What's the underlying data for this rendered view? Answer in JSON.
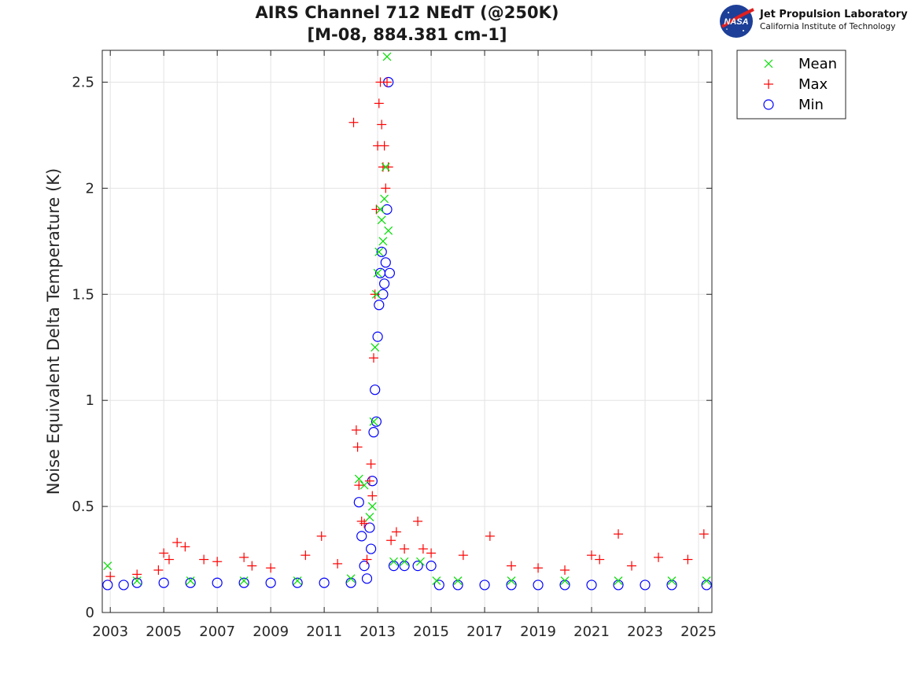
{
  "logo": {
    "name": "Jet Propulsion Laboratory",
    "subtitle": "California Institute of Technology",
    "badge": "NASA"
  },
  "chart_data": {
    "type": "scatter",
    "title_line1": "AIRS Channel 712 NEdT (@250K)",
    "title_line2": "[M-08, 884.381 cm-1]",
    "xlabel": "",
    "ylabel": "Noise Equivalent Delta Temperature (K)",
    "xlim": [
      2002.7,
      2025.5
    ],
    "ylim": [
      0,
      2.65
    ],
    "xticks": [
      2003,
      2005,
      2007,
      2009,
      2011,
      2013,
      2015,
      2017,
      2019,
      2021,
      2023,
      2025
    ],
    "xtick_labels": [
      "2003",
      "2005",
      "2007",
      "2009",
      "2011",
      "2013",
      "2015",
      "2017",
      "2019",
      "2021",
      "2023",
      "2025"
    ],
    "yticks": [
      0,
      0.5,
      1,
      1.5,
      2,
      2.5
    ],
    "ytick_labels": [
      "0",
      "0.5",
      "1",
      "1.5",
      "2",
      "2.5"
    ],
    "grid": true,
    "legend_position": "outside-top-right",
    "series": [
      {
        "name": "Mean",
        "marker": "x",
        "color": "#00dd00",
        "x": [
          2002.9,
          2004.0,
          2006.0,
          2008.0,
          2010.0,
          2012.0,
          2012.3,
          2012.5,
          2012.7,
          2012.8,
          2012.85,
          2012.9,
          2012.95,
          2013.0,
          2013.05,
          2013.1,
          2013.15,
          2013.2,
          2013.25,
          2013.3,
          2013.35,
          2013.4,
          2013.6,
          2014.0,
          2014.6,
          2015.2,
          2016.0,
          2018.0,
          2020.0,
          2022.0,
          2024.0,
          2025.3
        ],
        "y": [
          0.22,
          0.15,
          0.15,
          0.15,
          0.15,
          0.16,
          0.63,
          0.6,
          0.45,
          0.5,
          0.9,
          1.25,
          1.5,
          1.6,
          1.7,
          1.9,
          1.85,
          1.75,
          1.95,
          2.1,
          2.62,
          1.8,
          0.24,
          0.24,
          0.24,
          0.15,
          0.15,
          0.15,
          0.15,
          0.15,
          0.15,
          0.15
        ]
      },
      {
        "name": "Max",
        "marker": "+",
        "color": "#ff0000",
        "x": [
          2003.0,
          2004.0,
          2004.8,
          2005.0,
          2005.2,
          2005.5,
          2005.8,
          2006.5,
          2007.0,
          2008.0,
          2008.3,
          2009.0,
          2010.3,
          2010.9,
          2011.5,
          2012.1,
          2012.2,
          2012.25,
          2012.3,
          2012.4,
          2012.5,
          2012.6,
          2012.7,
          2012.75,
          2012.8,
          2012.85,
          2012.9,
          2012.95,
          2013.0,
          2013.05,
          2013.1,
          2013.15,
          2013.2,
          2013.25,
          2013.3,
          2013.35,
          2013.4,
          2013.5,
          2013.7,
          2014.0,
          2014.5,
          2014.7,
          2015.0,
          2016.2,
          2017.2,
          2018.0,
          2019.0,
          2020.0,
          2021.0,
          2021.3,
          2022.0,
          2022.5,
          2023.5,
          2024.6,
          2025.2
        ],
        "y": [
          0.17,
          0.18,
          0.2,
          0.28,
          0.25,
          0.33,
          0.31,
          0.25,
          0.24,
          0.26,
          0.22,
          0.21,
          0.27,
          0.36,
          0.23,
          2.31,
          0.86,
          0.78,
          0.6,
          0.43,
          0.42,
          0.25,
          0.62,
          0.7,
          0.55,
          1.2,
          1.5,
          1.9,
          2.2,
          2.4,
          2.5,
          2.3,
          2.1,
          2.2,
          2.0,
          2.5,
          2.1,
          0.34,
          0.38,
          0.3,
          0.43,
          0.3,
          0.28,
          0.27,
          0.36,
          0.22,
          0.21,
          0.2,
          0.27,
          0.25,
          0.37,
          0.22,
          0.26,
          0.25,
          0.37
        ]
      },
      {
        "name": "Min",
        "marker": "o",
        "color": "#0000ff",
        "x": [
          2002.9,
          2003.5,
          2004.0,
          2005.0,
          2006.0,
          2007.0,
          2008.0,
          2009.0,
          2010.0,
          2011.0,
          2012.0,
          2012.3,
          2012.4,
          2012.5,
          2012.6,
          2012.7,
          2012.75,
          2012.8,
          2012.85,
          2012.9,
          2012.95,
          2013.0,
          2013.05,
          2013.1,
          2013.15,
          2013.2,
          2013.25,
          2013.3,
          2013.35,
          2013.4,
          2013.45,
          2013.6,
          2014.0,
          2014.5,
          2015.0,
          2015.3,
          2016.0,
          2017.0,
          2018.0,
          2019.0,
          2020.0,
          2021.0,
          2022.0,
          2023.0,
          2024.0,
          2025.3
        ],
        "y": [
          0.13,
          0.13,
          0.14,
          0.14,
          0.14,
          0.14,
          0.14,
          0.14,
          0.14,
          0.14,
          0.14,
          0.52,
          0.36,
          0.22,
          0.16,
          0.4,
          0.3,
          0.62,
          0.85,
          1.05,
          0.9,
          1.3,
          1.45,
          1.6,
          1.7,
          1.5,
          1.55,
          1.65,
          1.9,
          2.5,
          1.6,
          0.22,
          0.22,
          0.22,
          0.22,
          0.13,
          0.13,
          0.13,
          0.13,
          0.13,
          0.13,
          0.13,
          0.13,
          0.13,
          0.13,
          0.13
        ]
      }
    ]
  }
}
